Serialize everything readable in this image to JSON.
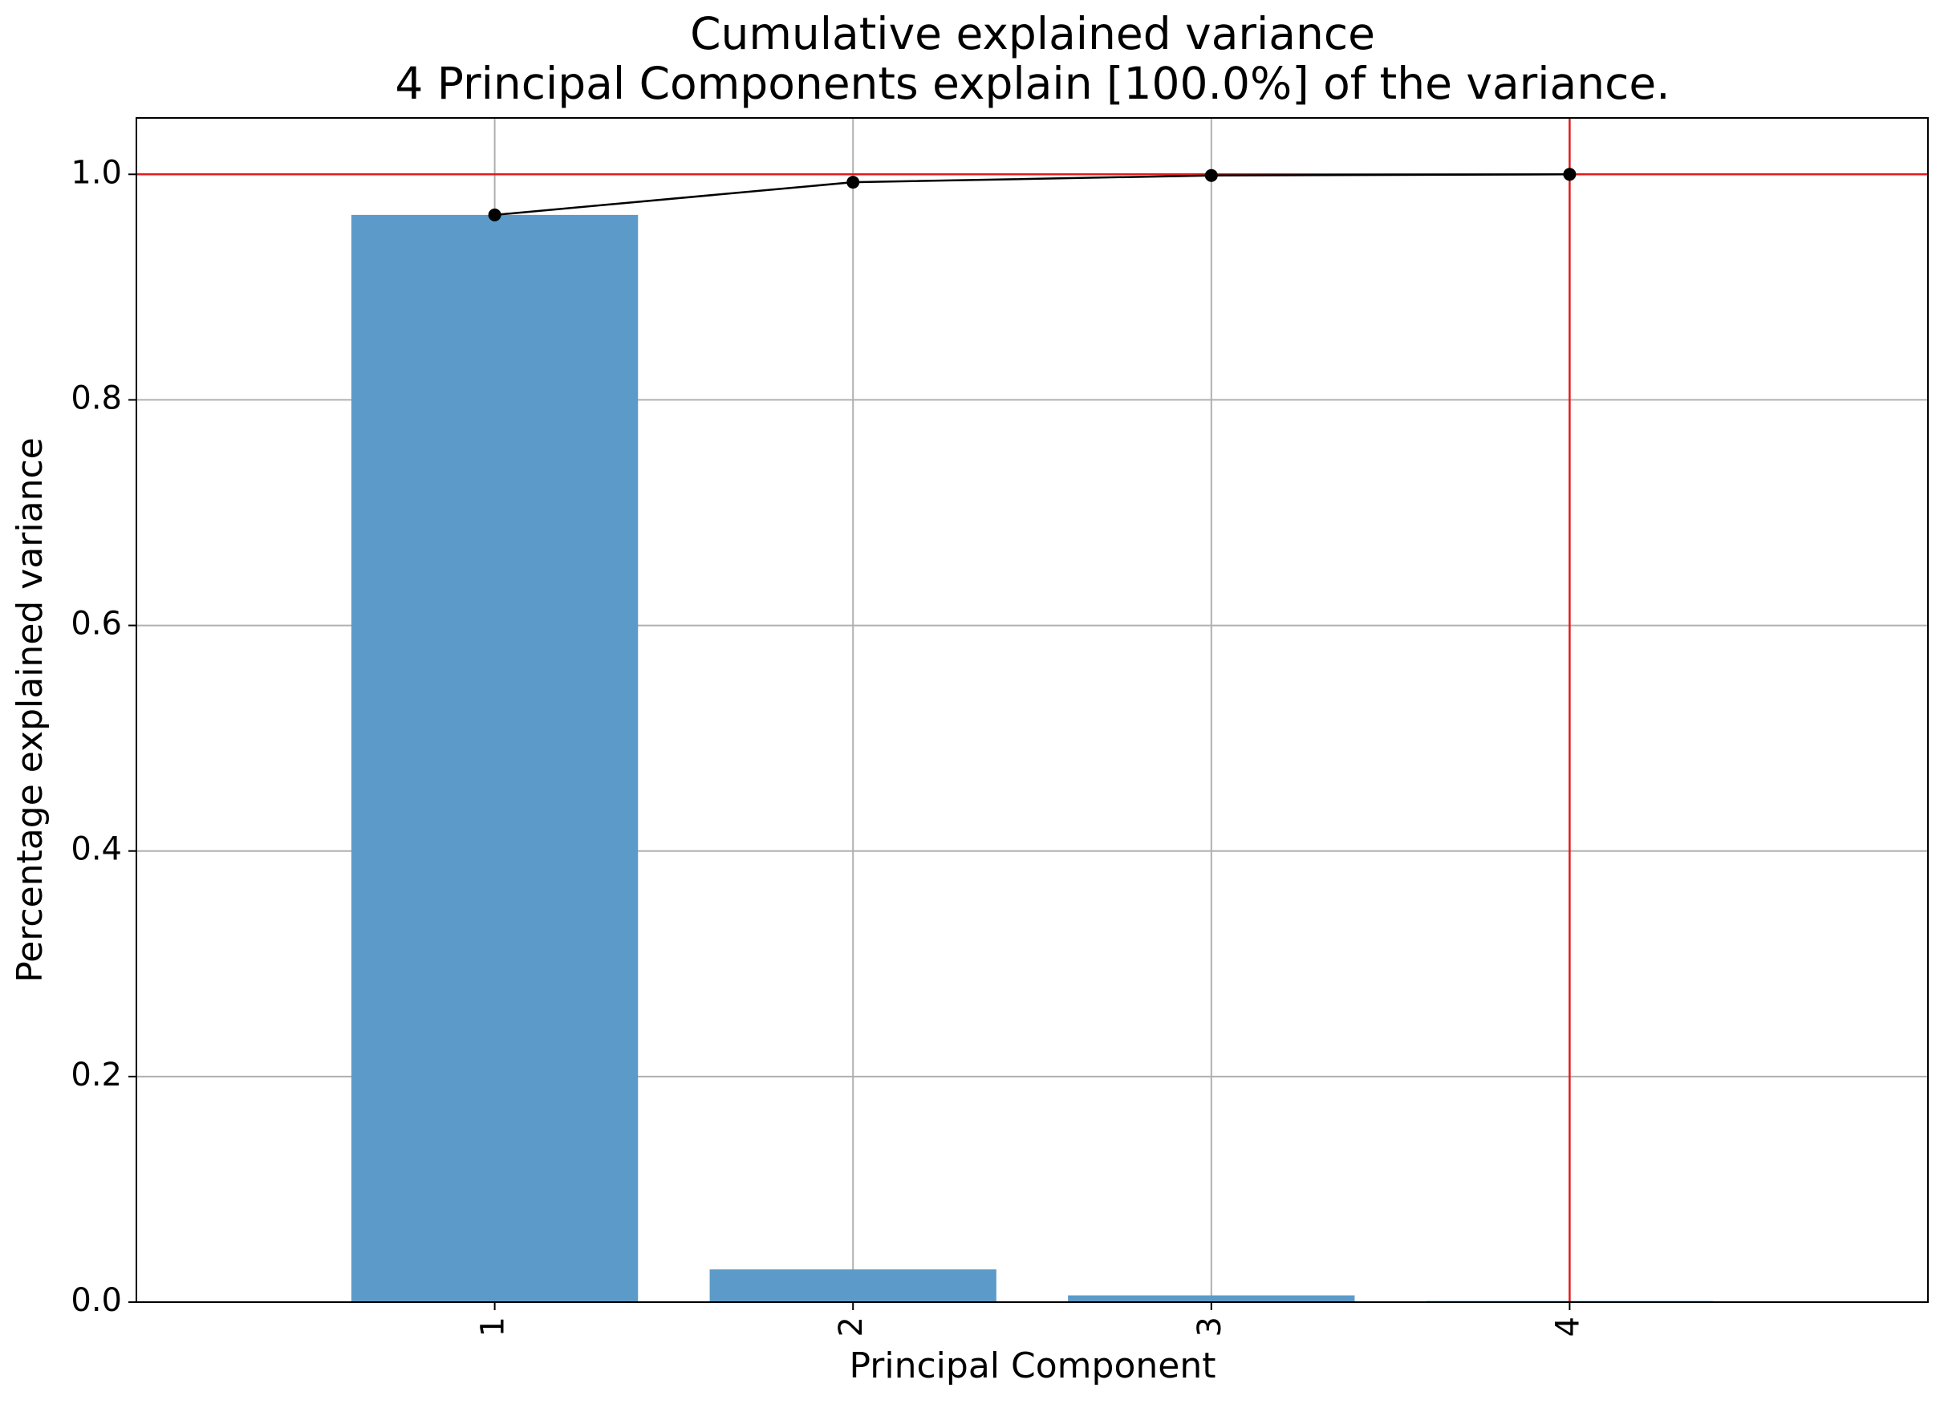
{
  "chart_data": {
    "type": "bar",
    "title": "Cumulative explained variance",
    "subtitle": "4 Principal Components explain [100.0%] of the variance.",
    "x_label": "Principal Component",
    "y_label": "Percentage explained variance",
    "x": [
      1,
      2,
      3,
      4
    ],
    "values": [
      0.964,
      0.029,
      0.006,
      0.001
    ],
    "color": "#5c9bc9",
    "cumulative_values": [
      0.964,
      0.993,
      0.999,
      1.0
    ],
    "line_color": "#000000",
    "xlim": [
      0,
      5
    ],
    "xticks": [
      1,
      2,
      3,
      4
    ],
    "ylim": [
      0,
      1.05
    ],
    "yticks": [
      {
        "value": 0,
        "label": "0.0"
      },
      {
        "value": 0.2,
        "label": "0.2"
      },
      {
        "value": 0.4,
        "label": "0.4"
      },
      {
        "value": 0.6,
        "label": "0.6"
      },
      {
        "value": 0.8,
        "label": "0.8"
      },
      {
        "value": 1.0,
        "label": "1.0"
      }
    ],
    "grid": true,
    "reference_lines": [
      {
        "axis": "y",
        "value": 1.0
      },
      {
        "axis": "x",
        "value": 4
      }
    ],
    "reference_color": "#e41a1c"
  }
}
